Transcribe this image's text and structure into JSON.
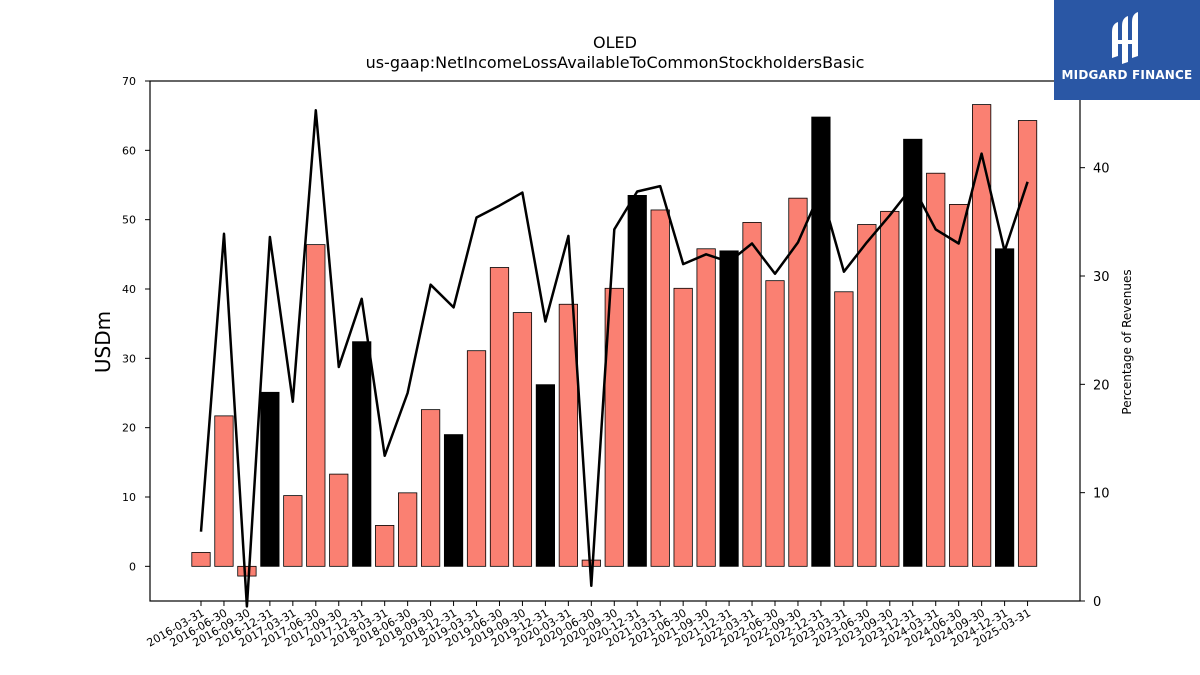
{
  "title": "OLED",
  "subtitle": "us-gaap:NetIncomeLossAvailableToCommonStockholdersBasic",
  "brand": {
    "name": "MIDGARD FINANCE",
    "bg": "#2a57a5"
  },
  "chart_data": {
    "type": "bar",
    "ylabel": "USDm",
    "y2label": "Percentage of Revenues",
    "ylim": [
      -5,
      70
    ],
    "y2lim": [
      0,
      48
    ],
    "yticks": [
      0,
      10,
      20,
      30,
      40,
      50,
      60,
      70
    ],
    "y2ticks": [
      0,
      10,
      20,
      30,
      40
    ],
    "categories": [
      "2016-03-31",
      "2016-06-30",
      "2016-09-30",
      "2016-12-31",
      "2017-03-31",
      "2017-06-30",
      "2017-09-30",
      "2017-12-31",
      "2018-03-31",
      "2018-06-30",
      "2018-09-30",
      "2018-12-31",
      "2019-03-31",
      "2019-06-30",
      "2019-09-30",
      "2019-12-31",
      "2020-03-31",
      "2020-06-30",
      "2020-09-30",
      "2020-12-31",
      "2021-03-31",
      "2021-06-30",
      "2021-09-30",
      "2021-12-31",
      "2022-03-31",
      "2022-06-30",
      "2022-09-30",
      "2022-12-31",
      "2023-03-31",
      "2023-06-30",
      "2023-09-30",
      "2023-12-31",
      "2024-03-31",
      "2024-06-30",
      "2024-09-30",
      "2024-12-31",
      "2025-03-31"
    ],
    "series": [
      {
        "values": [
          2.0,
          21.7,
          -1.4,
          25.1,
          10.2,
          46.4,
          13.3,
          32.4,
          5.9,
          10.6,
          22.6,
          19.0,
          31.1,
          43.1,
          36.6,
          26.2,
          37.8,
          0.9,
          40.1,
          53.5,
          51.4,
          40.1,
          45.8,
          45.5,
          49.6,
          41.2,
          53.1,
          64.8,
          39.6,
          49.3,
          51.2,
          61.6,
          56.7,
          52.2,
          66.6,
          45.8,
          64.3
        ]
      },
      {
        "values": [
          6.4,
          33.9,
          -0.5,
          33.6,
          18.4,
          45.3,
          21.6,
          27.9,
          13.4,
          19.2,
          29.2,
          27.1,
          35.4,
          36.5,
          37.7,
          25.8,
          33.7,
          1.4,
          34.3,
          37.8,
          38.3,
          31.1,
          32.0,
          31.3,
          33.0,
          30.2,
          33.1,
          37.9,
          30.4,
          33.1,
          35.6,
          38.3,
          34.3,
          33.0,
          41.3,
          32.3,
          38.7
        ]
      }
    ],
    "bar_colors": {
      "positive_highlight": "#000000",
      "normal": "#fa8072",
      "edge": "#000000"
    },
    "highlight_indices": [
      3,
      7,
      11,
      15,
      19,
      23,
      27,
      31,
      35
    ],
    "line_color": "#000000"
  }
}
